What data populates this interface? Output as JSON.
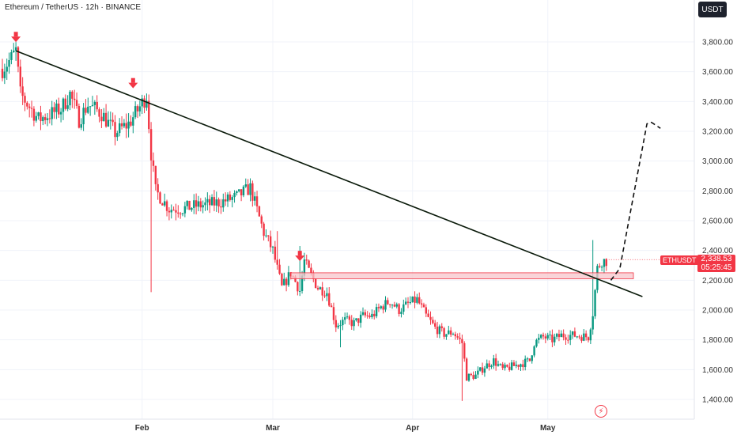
{
  "header": {
    "title": "Ethereum / TetherUS · 12h · BINANCE"
  },
  "currency_button": "USDT",
  "price_tag": {
    "symbol": "ETHUSDT",
    "price": "2,338.53",
    "countdown": "05:25:45"
  },
  "icons": {
    "alert": "lightning-alert-icon",
    "marker": "arrow-down-icon"
  },
  "colors": {
    "up": "#089981",
    "down": "#f23645",
    "trendline": "#0a1a0a",
    "zone_fill": "#f7c6cb",
    "zone_border": "#f23645"
  },
  "chart_data": {
    "type": "candlestick",
    "symbol": "ETHUSDT",
    "yaxis": {
      "min": 1300,
      "max": 4000,
      "ticks": [
        "1,400.00",
        "1,600.00",
        "1,800.00",
        "2,000.00",
        "2,200.00",
        "2,400.00",
        "2,600.00",
        "2,800.00",
        "3,000.00",
        "3,200.00",
        "3,400.00",
        "3,600.00",
        "3,800.00"
      ],
      "tick_values": [
        1400,
        1600,
        1800,
        2000,
        2200,
        2400,
        2600,
        2800,
        3000,
        3200,
        3400,
        3600,
        3800
      ]
    },
    "xaxis": {
      "ticks": [
        "Feb",
        "Mar",
        "Apr",
        "May"
      ],
      "tick_days": [
        31,
        60,
        91,
        121
      ]
    },
    "path_points": [
      [
        0,
        3620
      ],
      [
        2,
        3690
      ],
      [
        3,
        3740
      ],
      [
        4,
        3450
      ],
      [
        8,
        3280
      ],
      [
        11,
        3320
      ],
      [
        13,
        3350
      ],
      [
        15,
        3450
      ],
      [
        17,
        3280
      ],
      [
        19,
        3380
      ],
      [
        22,
        3320
      ],
      [
        25,
        3190
      ],
      [
        28,
        3250
      ],
      [
        30,
        3340
      ],
      [
        32,
        3440
      ],
      [
        33,
        3050
      ],
      [
        34,
        2800
      ],
      [
        37,
        2680
      ],
      [
        40,
        2680
      ],
      [
        43,
        2700
      ],
      [
        46,
        2710
      ],
      [
        49,
        2730
      ],
      [
        52,
        2760
      ],
      [
        55,
        2820
      ],
      [
        56,
        2720
      ],
      [
        58,
        2520
      ],
      [
        60,
        2400
      ],
      [
        62,
        2150
      ],
      [
        64,
        2250
      ],
      [
        66,
        2130
      ],
      [
        67,
        2330
      ],
      [
        68,
        2260
      ],
      [
        70,
        2150
      ],
      [
        72,
        2120
      ],
      [
        74,
        1900
      ],
      [
        76,
        1930
      ],
      [
        78,
        1910
      ],
      [
        80,
        1960
      ],
      [
        82,
        1960
      ],
      [
        84,
        2020
      ],
      [
        86,
        2060
      ],
      [
        88,
        2000
      ],
      [
        90,
        2040
      ],
      [
        92,
        2070
      ],
      [
        94,
        1960
      ],
      [
        96,
        1880
      ],
      [
        98,
        1840
      ],
      [
        100,
        1850
      ],
      [
        102,
        1780
      ],
      [
        103,
        1550
      ],
      [
        105,
        1560
      ],
      [
        107,
        1620
      ],
      [
        109,
        1660
      ],
      [
        111,
        1600
      ],
      [
        113,
        1620
      ],
      [
        115,
        1640
      ],
      [
        117,
        1660
      ],
      [
        118,
        1780
      ],
      [
        120,
        1820
      ],
      [
        122,
        1800
      ],
      [
        124,
        1830
      ],
      [
        127,
        1830
      ],
      [
        130,
        1820
      ],
      [
        131,
        1980
      ],
      [
        132,
        2280
      ],
      [
        133,
        2330
      ],
      [
        134,
        2330
      ]
    ],
    "trendline": {
      "from": {
        "day": 3,
        "price": 3740
      },
      "to": {
        "day": 142,
        "price": 2090
      }
    },
    "resistance_zone": {
      "day_start": 64,
      "day_end": 140,
      "price_low": 2210,
      "price_high": 2250
    },
    "projection": {
      "points": [
        [
          135,
          2200
        ],
        [
          137,
          2280
        ],
        [
          143,
          3250
        ],
        [
          144,
          3260
        ],
        [
          146,
          3220
        ]
      ],
      "style": "dashed"
    },
    "markers": [
      {
        "day": 3,
        "price": 3740,
        "type": "arrow-down"
      },
      {
        "day": 29,
        "price": 3430,
        "type": "arrow-down"
      },
      {
        "day": 66,
        "price": 2270,
        "type": "arrow-down"
      }
    ],
    "last_price": 2338.53
  }
}
